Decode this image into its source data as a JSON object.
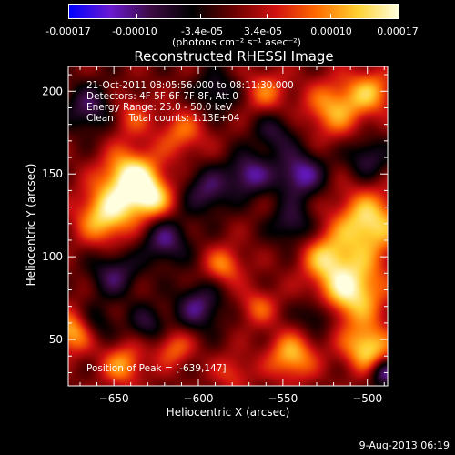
{
  "colorbar": {
    "tick_labels": [
      "-0.00017",
      "-0.00010",
      "-3.4e-05",
      "3.4e-05",
      "0.00010",
      "0.00017"
    ],
    "unit_label": "(photons cm⁻² s⁻¹ asec⁻²)",
    "colors": [
      "#0000ff",
      "#6a1ad0",
      "#3a0a40",
      "#000000",
      "#6a0000",
      "#d01010",
      "#ff6a00",
      "#ffd030",
      "#ffffe0"
    ]
  },
  "chart_data": {
    "type": "heatmap",
    "title": "Reconstructed RHESSI Image",
    "xlabel": "Heliocentric X (arcsec)",
    "ylabel": "Heliocentric Y (arcsec)",
    "xlim": [
      -677,
      -488
    ],
    "ylim": [
      22,
      215
    ],
    "x_ticks": [
      -650,
      -600,
      -550,
      -500
    ],
    "y_ticks": [
      50,
      100,
      150,
      200
    ],
    "color_range": [
      -0.00017,
      0.00017
    ],
    "peak": {
      "x": -639,
      "y": 147
    },
    "blobs": [
      {
        "x": -640,
        "y": 148,
        "v": 0.00017,
        "r": 12
      },
      {
        "x": -655,
        "y": 125,
        "v": 0.00014,
        "r": 12
      },
      {
        "x": -628,
        "y": 135,
        "v": 0.00012,
        "r": 9
      },
      {
        "x": -500,
        "y": 120,
        "v": 0.00015,
        "r": 14
      },
      {
        "x": -510,
        "y": 80,
        "v": 0.00016,
        "r": 14
      },
      {
        "x": -500,
        "y": 45,
        "v": 0.00014,
        "r": 10
      },
      {
        "x": -525,
        "y": 100,
        "v": 0.0001,
        "r": 10
      },
      {
        "x": -545,
        "y": 40,
        "v": 0.00012,
        "r": 10
      },
      {
        "x": -520,
        "y": 190,
        "v": 0.00011,
        "r": 12
      },
      {
        "x": -498,
        "y": 200,
        "v": 0.0001,
        "r": 10
      },
      {
        "x": -560,
        "y": 200,
        "v": 8e-05,
        "r": 9
      },
      {
        "x": -610,
        "y": 175,
        "v": 8e-05,
        "r": 10
      },
      {
        "x": -640,
        "y": 185,
        "v": 6e-05,
        "r": 9
      },
      {
        "x": -675,
        "y": 55,
        "v": 0.00012,
        "r": 9
      },
      {
        "x": -645,
        "y": 35,
        "v": 0.0001,
        "r": 9
      },
      {
        "x": -615,
        "y": 45,
        "v": 8e-05,
        "r": 8
      },
      {
        "x": -585,
        "y": 95,
        "v": 9e-05,
        "r": 8
      },
      {
        "x": -565,
        "y": 70,
        "v": 7e-05,
        "r": 8
      },
      {
        "x": -580,
        "y": 30,
        "v": 6e-05,
        "r": 8
      },
      {
        "x": -595,
        "y": 140,
        "v": -9e-05,
        "r": 10
      },
      {
        "x": -570,
        "y": 150,
        "v": -0.00011,
        "r": 9
      },
      {
        "x": -540,
        "y": 150,
        "v": -0.00012,
        "r": 10
      },
      {
        "x": -620,
        "y": 110,
        "v": -0.0001,
        "r": 10
      },
      {
        "x": -650,
        "y": 90,
        "v": -9e-05,
        "r": 10
      },
      {
        "x": -600,
        "y": 70,
        "v": -0.0001,
        "r": 10
      },
      {
        "x": -545,
        "y": 120,
        "v": -8e-05,
        "r": 9
      },
      {
        "x": -555,
        "y": 175,
        "v": -7e-05,
        "r": 9
      },
      {
        "x": -500,
        "y": 160,
        "v": -8e-05,
        "r": 9
      },
      {
        "x": -665,
        "y": 190,
        "v": -9e-05,
        "r": 10
      },
      {
        "x": -630,
        "y": 60,
        "v": -7e-05,
        "r": 8
      },
      {
        "x": -590,
        "y": 200,
        "v": -7e-05,
        "r": 9
      },
      {
        "x": -530,
        "y": 65,
        "v": -8e-05,
        "r": 8
      },
      {
        "x": -490,
        "y": 30,
        "v": -0.00012,
        "r": 6
      },
      {
        "x": -660,
        "y": 60,
        "v": -6e-05,
        "r": 8
      }
    ]
  },
  "annotations": {
    "time_range": "21-Oct-2011 08:05:56.000 to 08:11:30.000",
    "detectors": "Detectors: 4F 5F 6F 7F 8F, Att 0",
    "energy": "Energy Range: 25.0 - 50.0 keV",
    "clean": "Clean     Total counts: 1.13E+04",
    "peak_position": "Position of Peak = [-639,147]"
  },
  "footer": {
    "date": "9-Aug-2013 06:19"
  }
}
